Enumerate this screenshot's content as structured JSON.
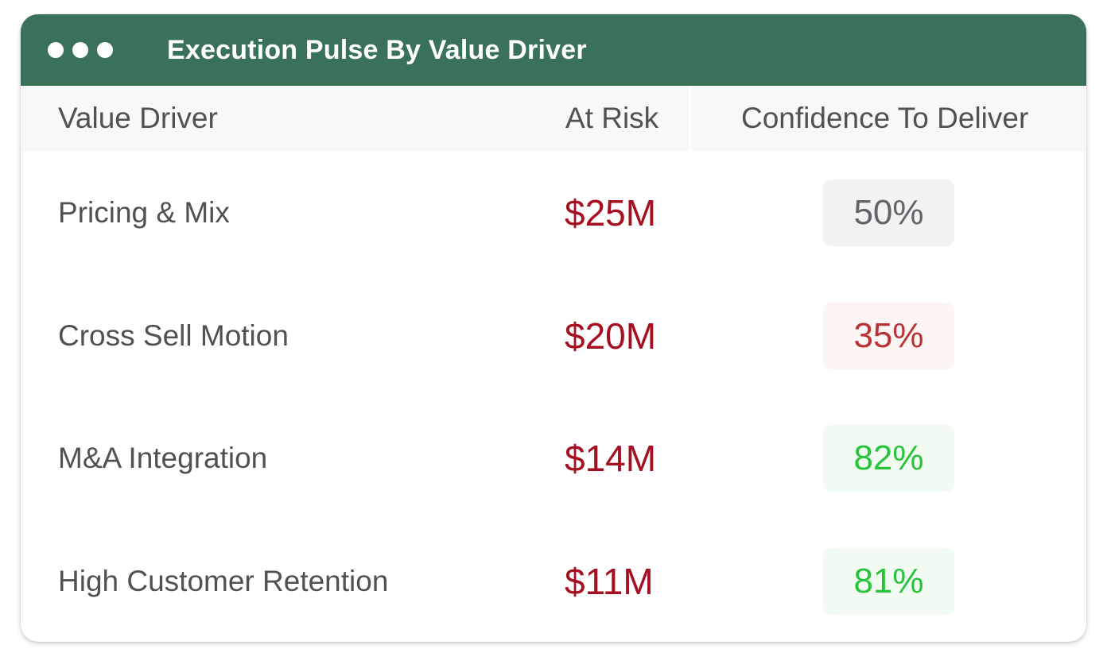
{
  "window": {
    "title": "Execution Pulse By Value Driver"
  },
  "table": {
    "headers": {
      "driver": "Value Driver",
      "risk": "At Risk",
      "confidence": "Confidence To Deliver"
    },
    "rows": [
      {
        "driver": "Pricing & Mix",
        "risk": "$25M",
        "confidence": "50%",
        "confidence_status": "neutral",
        "badge_bg": "#f2f2f2",
        "badge_fg": "#636369"
      },
      {
        "driver": "Cross Sell Motion",
        "risk": "$20M",
        "confidence": "35%",
        "confidence_status": "low",
        "badge_bg": "#fcf5f4",
        "badge_fg": "#b83237"
      },
      {
        "driver": "M&A Integration",
        "risk": "$14M",
        "confidence": "82%",
        "confidence_status": "high",
        "badge_bg": "#f1fbf1",
        "badge_fg": "#27c43b"
      },
      {
        "driver": "High Customer Retention",
        "risk": "$11M",
        "confidence": "81%",
        "confidence_status": "high",
        "badge_bg": "#f1fbf1",
        "badge_fg": "#27c43b"
      }
    ]
  },
  "colors": {
    "titlebar": "#3a7259",
    "at_risk_text": "#a50f1f",
    "label_text": "#515151",
    "header_bg": "#f8f8f8"
  }
}
